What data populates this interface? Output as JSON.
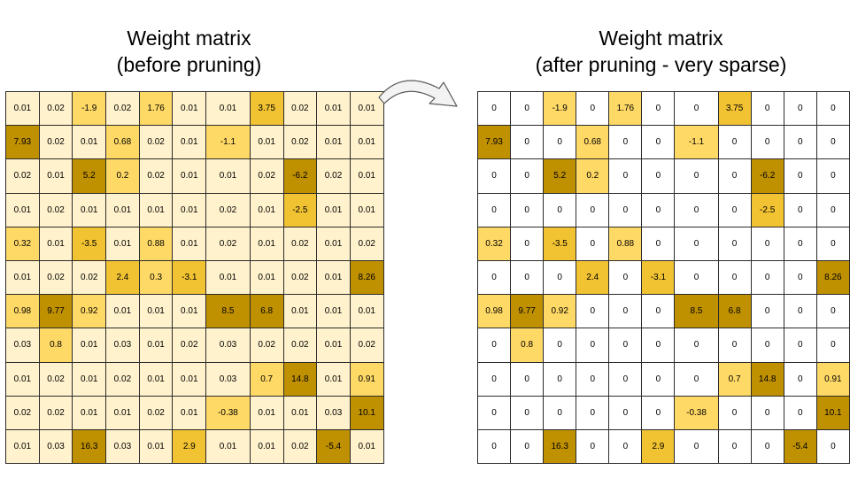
{
  "left": {
    "title_line1": "Weight matrix",
    "title_line2": "(before pruning)",
    "values": [
      [
        "0.01",
        "0.02",
        "-1.9",
        "0.02",
        "1.76",
        "0.01",
        "0.01",
        "3.75",
        "0.02",
        "0.01",
        "0.01"
      ],
      [
        "7.93",
        "0.02",
        "0.01",
        "0.68",
        "0.02",
        "0.01",
        "-1.1",
        "0.01",
        "0.02",
        "0.01",
        "0.01"
      ],
      [
        "0.02",
        "0.01",
        "5.2",
        "0.2",
        "0.02",
        "0.01",
        "0.01",
        "0.02",
        "-6.2",
        "0.02",
        "0.01"
      ],
      [
        "0.01",
        "0.02",
        "0.01",
        "0.01",
        "0.01",
        "0.01",
        "0.02",
        "0.01",
        "-2.5",
        "0.01",
        "0.01"
      ],
      [
        "0.32",
        "0.01",
        "-3.5",
        "0.01",
        "0.88",
        "0.01",
        "0.02",
        "0.01",
        "0.02",
        "0.01",
        "0.02"
      ],
      [
        "0.01",
        "0.02",
        "0.02",
        "2.4",
        "0.3",
        "-3.1",
        "0.01",
        "0.01",
        "0.02",
        "0.01",
        "8.26"
      ],
      [
        "0.98",
        "9.77",
        "0.92",
        "0.01",
        "0.01",
        "0.01",
        "8.5",
        "6.8",
        "0.01",
        "0.01",
        "0.01"
      ],
      [
        "0.03",
        "0.8",
        "0.01",
        "0.03",
        "0.01",
        "0.02",
        "0.03",
        "0.02",
        "0.02",
        "0.01",
        "0.02"
      ],
      [
        "0.01",
        "0.02",
        "0.01",
        "0.02",
        "0.01",
        "0.01",
        "0.03",
        "0.7",
        "14.8",
        "0.01",
        "0.91"
      ],
      [
        "0.02",
        "0.02",
        "0.01",
        "0.01",
        "0.02",
        "0.01",
        "-0.38",
        "0.01",
        "0.01",
        "0.03",
        "10.1"
      ],
      [
        "0.01",
        "0.03",
        "16.3",
        "0.03",
        "0.01",
        "2.9",
        "0.01",
        "0.01",
        "0.02",
        "-5.4",
        "0.01"
      ]
    ]
  },
  "right": {
    "title_line1": "Weight matrix",
    "title_line2": "(after pruning - very sparse)",
    "values": [
      [
        "0",
        "0",
        "-1.9",
        "0",
        "1.76",
        "0",
        "0",
        "3.75",
        "0",
        "0",
        "0"
      ],
      [
        "7.93",
        "0",
        "0",
        "0.68",
        "0",
        "0",
        "-1.1",
        "0",
        "0",
        "0",
        "0"
      ],
      [
        "0",
        "0",
        "5.2",
        "0.2",
        "0",
        "0",
        "0",
        "0",
        "-6.2",
        "0",
        "0"
      ],
      [
        "0",
        "0",
        "0",
        "0",
        "0",
        "0",
        "0",
        "0",
        "-2.5",
        "0",
        "0"
      ],
      [
        "0.32",
        "0",
        "-3.5",
        "0",
        "0.88",
        "0",
        "0",
        "0",
        "0",
        "0",
        "0"
      ],
      [
        "0",
        "0",
        "0",
        "2.4",
        "0",
        "-3.1",
        "0",
        "0",
        "0",
        "0",
        "8.26"
      ],
      [
        "0.98",
        "9.77",
        "0.92",
        "0",
        "0",
        "0",
        "8.5",
        "6.8",
        "0",
        "0",
        "0"
      ],
      [
        "0",
        "0.8",
        "0",
        "0",
        "0",
        "0",
        "0",
        "0",
        "0",
        "0",
        "0"
      ],
      [
        "0",
        "0",
        "0",
        "0",
        "0",
        "0",
        "0",
        "0.7",
        "14.8",
        "0",
        "0.91"
      ],
      [
        "0",
        "0",
        "0",
        "0",
        "0",
        "0",
        "-0.38",
        "0",
        "0",
        "0",
        "10.1"
      ],
      [
        "0",
        "0",
        "16.3",
        "0",
        "0",
        "2.9",
        "0",
        "0",
        "0",
        "-5.4",
        "0"
      ]
    ]
  },
  "colors": {
    "near_zero": "#fff2cc",
    "zero": "#ffffff",
    "small": "#ffd966",
    "medium": "#f1c232",
    "large": "#bf9000",
    "grid_line": "#2b2b2b",
    "arrow_fill": "#f3f3f3",
    "arrow_stroke": "#5a5a5a"
  },
  "arrow_icon": "curved-arrow-right"
}
